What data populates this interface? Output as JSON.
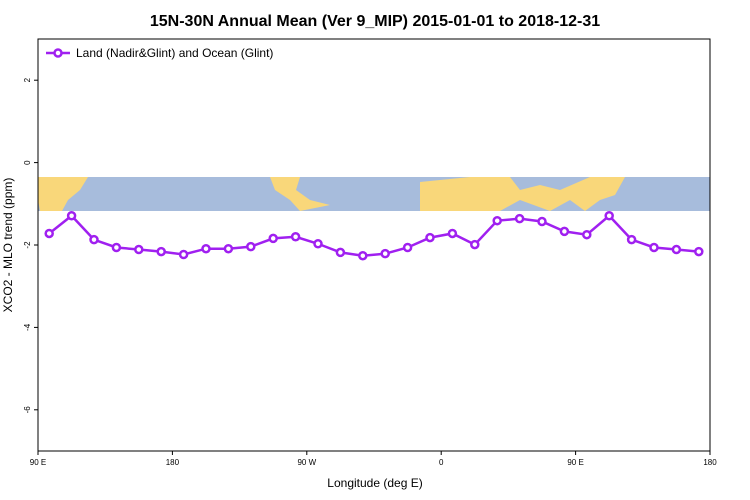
{
  "chart_data": {
    "type": "line",
    "title": "15N-30N Annual Mean (Ver 9_MIP)   2015-01-01 to 2018-12-31",
    "x_label": "Longitude (deg E)",
    "y_label": "XCO2 - MLO trend (ppm)",
    "x": [
      97.5,
      112.5,
      127.5,
      142.5,
      157.5,
      172.5,
      187.5,
      202.5,
      217.5,
      232.5,
      247.5,
      262.5,
      277.5,
      292.5,
      307.5,
      322.5,
      337.5,
      352.5,
      367.5,
      382.5,
      397.5,
      412.5,
      427.5,
      442.5,
      457.5,
      472.5,
      487.5,
      502.5,
      517.5,
      532.5
    ],
    "series": [
      {
        "name": "Land (Nadir&Glint) and Ocean (Glint)",
        "color": "#a020f0",
        "values": [
          -1.72,
          -1.29,
          -1.87,
          -2.06,
          -2.11,
          -2.16,
          -2.23,
          -2.09,
          -2.09,
          -2.04,
          -1.84,
          -1.8,
          -1.97,
          -2.18,
          -2.26,
          -2.21,
          -2.06,
          -1.82,
          -1.72,
          -1.99,
          -1.41,
          -1.36,
          -1.43,
          -1.67,
          -1.75,
          -1.29,
          -1.87,
          -2.06,
          -2.11,
          -2.16
        ]
      }
    ],
    "xlim": [
      90,
      540
    ],
    "xticks": [
      {
        "value": 90,
        "label": "90 E"
      },
      180,
      {
        "value": 270,
        "label": "90 W"
      },
      {
        "value": 360,
        "label": "0"
      },
      {
        "value": 450,
        "label": "90 E"
      },
      {
        "value": 540,
        "label": "180"
      }
    ],
    "ylim": [
      -7,
      3
    ],
    "yticks": [
      2,
      0,
      -2,
      -4,
      -6
    ],
    "legend": "top-left"
  }
}
